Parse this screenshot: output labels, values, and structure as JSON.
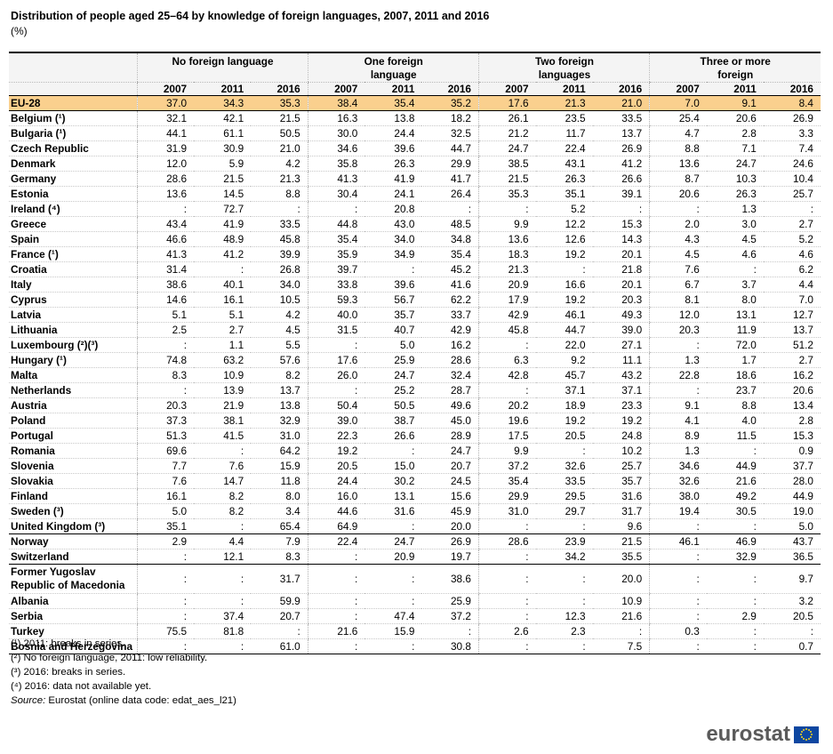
{
  "title": "Distribution of people aged 25–64 by knowledge of foreign languages, 2007, 2011 and 2016",
  "subtitle": "(%)",
  "groups": [
    "No foreign language",
    "One foreign language",
    "Two foreign languages",
    "Three or more foreign"
  ],
  "years": [
    "2007",
    "2011",
    "2016"
  ],
  "rows": [
    {
      "country": "EU-28",
      "values": [
        "37.0",
        "34.3",
        "35.3",
        "38.4",
        "35.4",
        "35.2",
        "17.6",
        "21.3",
        "21.0",
        "7.0",
        "9.1",
        "8.4"
      ]
    },
    {
      "country": "Belgium (¹)",
      "values": [
        "32.1",
        "42.1",
        "21.5",
        "16.3",
        "13.8",
        "18.2",
        "26.1",
        "23.5",
        "33.5",
        "25.4",
        "20.6",
        "26.9"
      ]
    },
    {
      "country": "Bulgaria (¹)",
      "values": [
        "44.1",
        "61.1",
        "50.5",
        "30.0",
        "24.4",
        "32.5",
        "21.2",
        "11.7",
        "13.7",
        "4.7",
        "2.8",
        "3.3"
      ]
    },
    {
      "country": "Czech Republic",
      "values": [
        "31.9",
        "30.9",
        "21.0",
        "34.6",
        "39.6",
        "44.7",
        "24.7",
        "22.4",
        "26.9",
        "8.8",
        "7.1",
        "7.4"
      ]
    },
    {
      "country": "Denmark",
      "values": [
        "12.0",
        "5.9",
        "4.2",
        "35.8",
        "26.3",
        "29.9",
        "38.5",
        "43.1",
        "41.2",
        "13.6",
        "24.7",
        "24.6"
      ]
    },
    {
      "country": "Germany",
      "values": [
        "28.6",
        "21.5",
        "21.3",
        "41.3",
        "41.9",
        "41.7",
        "21.5",
        "26.3",
        "26.6",
        "8.7",
        "10.3",
        "10.4"
      ]
    },
    {
      "country": "Estonia",
      "values": [
        "13.6",
        "14.5",
        "8.8",
        "30.4",
        "24.1",
        "26.4",
        "35.3",
        "35.1",
        "39.1",
        "20.6",
        "26.3",
        "25.7"
      ]
    },
    {
      "country": "Ireland (⁴)",
      "values": [
        ":",
        "72.7",
        ":",
        ":",
        "20.8",
        ":",
        ":",
        "5.2",
        ":",
        ":",
        "1.3",
        ":"
      ]
    },
    {
      "country": "Greece",
      "values": [
        "43.4",
        "41.9",
        "33.5",
        "44.8",
        "43.0",
        "48.5",
        "9.9",
        "12.2",
        "15.3",
        "2.0",
        "3.0",
        "2.7"
      ]
    },
    {
      "country": "Spain",
      "values": [
        "46.6",
        "48.9",
        "45.8",
        "35.4",
        "34.0",
        "34.8",
        "13.6",
        "12.6",
        "14.3",
        "4.3",
        "4.5",
        "5.2"
      ]
    },
    {
      "country": "France (¹)",
      "values": [
        "41.3",
        "41.2",
        "39.9",
        "35.9",
        "34.9",
        "35.4",
        "18.3",
        "19.2",
        "20.1",
        "4.5",
        "4.6",
        "4.6"
      ]
    },
    {
      "country": "Croatia",
      "values": [
        "31.4",
        ":",
        "26.8",
        "39.7",
        ":",
        "45.2",
        "21.3",
        ":",
        "21.8",
        "7.6",
        ":",
        "6.2"
      ]
    },
    {
      "country": "Italy",
      "values": [
        "38.6",
        "40.1",
        "34.0",
        "33.8",
        "39.6",
        "41.6",
        "20.9",
        "16.6",
        "20.1",
        "6.7",
        "3.7",
        "4.4"
      ]
    },
    {
      "country": "Cyprus",
      "values": [
        "14.6",
        "16.1",
        "10.5",
        "59.3",
        "56.7",
        "62.2",
        "17.9",
        "19.2",
        "20.3",
        "8.1",
        "8.0",
        "7.0"
      ]
    },
    {
      "country": "Latvia",
      "values": [
        "5.1",
        "5.1",
        "4.2",
        "40.0",
        "35.7",
        "33.7",
        "42.9",
        "46.1",
        "49.3",
        "12.0",
        "13.1",
        "12.7"
      ]
    },
    {
      "country": "Lithuania",
      "values": [
        "2.5",
        "2.7",
        "4.5",
        "31.5",
        "40.7",
        "42.9",
        "45.8",
        "44.7",
        "39.0",
        "20.3",
        "11.9",
        "13.7"
      ]
    },
    {
      "country": "Luxembourg (²)(³)",
      "values": [
        ":",
        "1.1",
        "5.5",
        ":",
        "5.0",
        "16.2",
        ":",
        "22.0",
        "27.1",
        ":",
        "72.0",
        "51.2"
      ]
    },
    {
      "country": "Hungary (¹)",
      "values": [
        "74.8",
        "63.2",
        "57.6",
        "17.6",
        "25.9",
        "28.6",
        "6.3",
        "9.2",
        "11.1",
        "1.3",
        "1.7",
        "2.7"
      ]
    },
    {
      "country": "Malta",
      "values": [
        "8.3",
        "10.9",
        "8.2",
        "26.0",
        "24.7",
        "32.4",
        "42.8",
        "45.7",
        "43.2",
        "22.8",
        "18.6",
        "16.2"
      ]
    },
    {
      "country": "Netherlands",
      "values": [
        ":",
        "13.9",
        "13.7",
        ":",
        "25.2",
        "28.7",
        ":",
        "37.1",
        "37.1",
        ":",
        "23.7",
        "20.6"
      ]
    },
    {
      "country": "Austria",
      "values": [
        "20.3",
        "21.9",
        "13.8",
        "50.4",
        "50.5",
        "49.6",
        "20.2",
        "18.9",
        "23.3",
        "9.1",
        "8.8",
        "13.4"
      ]
    },
    {
      "country": "Poland",
      "values": [
        "37.3",
        "38.1",
        "32.9",
        "39.0",
        "38.7",
        "45.0",
        "19.6",
        "19.2",
        "19.2",
        "4.1",
        "4.0",
        "2.8"
      ]
    },
    {
      "country": "Portugal",
      "values": [
        "51.3",
        "41.5",
        "31.0",
        "22.3",
        "26.6",
        "28.9",
        "17.5",
        "20.5",
        "24.8",
        "8.9",
        "11.5",
        "15.3"
      ]
    },
    {
      "country": "Romania",
      "values": [
        "69.6",
        ":",
        "64.2",
        "19.2",
        ":",
        "24.7",
        "9.9",
        ":",
        "10.2",
        "1.3",
        ":",
        "0.9"
      ]
    },
    {
      "country": "Slovenia",
      "values": [
        "7.7",
        "7.6",
        "15.9",
        "20.5",
        "15.0",
        "20.7",
        "37.2",
        "32.6",
        "25.7",
        "34.6",
        "44.9",
        "37.7"
      ]
    },
    {
      "country": "Slovakia",
      "values": [
        "7.6",
        "14.7",
        "11.8",
        "24.4",
        "30.2",
        "24.5",
        "35.4",
        "33.5",
        "35.7",
        "32.6",
        "21.6",
        "28.0"
      ]
    },
    {
      "country": "Finland",
      "values": [
        "16.1",
        "8.2",
        "8.0",
        "16.0",
        "13.1",
        "15.6",
        "29.9",
        "29.5",
        "31.6",
        "38.0",
        "49.2",
        "44.9"
      ]
    },
    {
      "country": "Sweden (³)",
      "values": [
        "5.0",
        "8.2",
        "3.4",
        "44.6",
        "31.6",
        "45.9",
        "31.0",
        "29.7",
        "31.7",
        "19.4",
        "30.5",
        "19.0"
      ]
    },
    {
      "country": "United Kingdom (³)",
      "values": [
        "35.1",
        ":",
        "65.4",
        "64.9",
        ":",
        "20.0",
        ":",
        ":",
        "9.6",
        ":",
        ":",
        "5.0"
      ]
    },
    {
      "country": "Norway",
      "values": [
        "2.9",
        "4.4",
        "7.9",
        "22.4",
        "24.7",
        "26.9",
        "28.6",
        "23.9",
        "21.5",
        "46.1",
        "46.9",
        "43.7"
      ]
    },
    {
      "country": "Switzerland",
      "values": [
        ":",
        "12.1",
        "8.3",
        ":",
        "20.9",
        "19.7",
        ":",
        "34.2",
        "35.5",
        ":",
        "32.9",
        "36.5"
      ]
    },
    {
      "country": "Former Yugoslav Republic of Macedonia",
      "values": [
        ":",
        ":",
        "31.7",
        ":",
        ":",
        "38.6",
        ":",
        ":",
        "20.0",
        ":",
        ":",
        "9.7"
      ]
    },
    {
      "country": "Albania",
      "values": [
        ":",
        ":",
        "59.9",
        ":",
        ":",
        "25.9",
        ":",
        ":",
        "10.9",
        ":",
        ":",
        "3.2"
      ]
    },
    {
      "country": "Serbia",
      "values": [
        ":",
        "37.4",
        "20.7",
        ":",
        "47.4",
        "37.2",
        ":",
        "12.3",
        "21.6",
        ":",
        "2.9",
        "20.5"
      ]
    },
    {
      "country": "Turkey",
      "values": [
        "75.5",
        "81.8",
        ":",
        "21.6",
        "15.9",
        ":",
        "2.6",
        "2.3",
        ":",
        "0.3",
        ":",
        ":"
      ]
    },
    {
      "country": "Bosnia and Herzegovina",
      "values": [
        ":",
        ":",
        "61.0",
        ":",
        ":",
        "30.8",
        ":",
        ":",
        "7.5",
        ":",
        ":",
        "0.7"
      ]
    }
  ],
  "footnotes": [
    "(¹) 2011: breaks in series.",
    "(²) No foreign language, 2011: low reliability.",
    "(³) 2016: breaks in series.",
    "(⁴) 2016: data not available yet."
  ],
  "source": {
    "label": "Source:",
    "text": " Eurostat (online data code: edat_aes_l21)"
  },
  "logo_text": "eurostat",
  "colors": {
    "eu_row": "#fad08e",
    "header_bg": "#f4f4f4",
    "logo_text": "#5a5a5a",
    "flag_blue": "#0e47a1",
    "flag_star": "#f9d71c"
  }
}
